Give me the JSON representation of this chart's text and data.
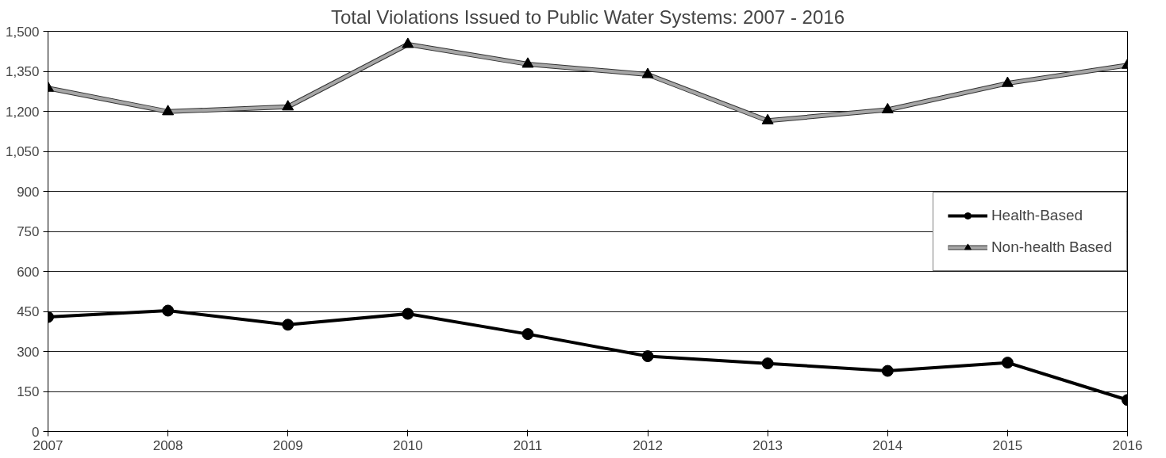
{
  "chart_data": {
    "type": "line",
    "title": "Total Violations Issued to Public Water Systems: 2007 - 2016",
    "categories": [
      "2007",
      "2008",
      "2009",
      "2010",
      "2011",
      "2012",
      "2013",
      "2014",
      "2015",
      "2016"
    ],
    "series": [
      {
        "name": "Health-Based",
        "color": "#000000",
        "marker": "circle",
        "values": [
          429,
          453,
          400,
          441,
          365,
          282,
          255,
          227,
          258,
          118
        ]
      },
      {
        "name": "Non-health Based",
        "color": "#a6a6a6",
        "marker": "triangle",
        "values": [
          1287,
          1199,
          1217,
          1451,
          1377,
          1338,
          1165,
          1206,
          1305,
          1373
        ]
      }
    ],
    "ylim": [
      0,
      1500
    ],
    "yticks": [
      {
        "value": 0,
        "label": "0"
      },
      {
        "value": 150,
        "label": "150"
      },
      {
        "value": 300,
        "label": "300"
      },
      {
        "value": 450,
        "label": "450"
      },
      {
        "value": 600,
        "label": "600"
      },
      {
        "value": 750,
        "label": "750"
      },
      {
        "value": 900,
        "label": "900"
      },
      {
        "value": 1050,
        "label": "1,050"
      },
      {
        "value": 1200,
        "label": "1,200"
      },
      {
        "value": 1350,
        "label": "1,350"
      },
      {
        "value": 1500,
        "label": "1,500"
      }
    ],
    "grid": "y",
    "legend": "right"
  }
}
